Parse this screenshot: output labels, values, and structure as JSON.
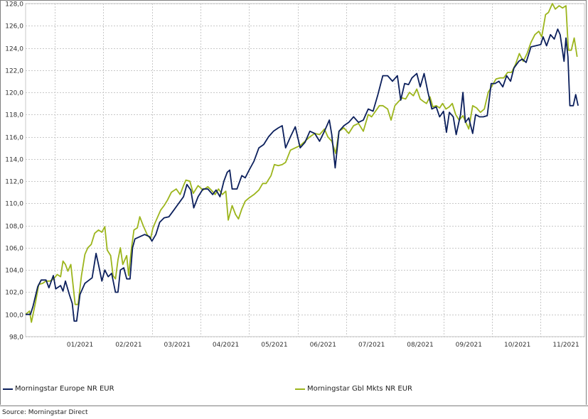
{
  "chart_data": {
    "type": "line",
    "ylim": [
      98,
      128
    ],
    "yticks": [
      "98,0",
      "100,0",
      "102,0",
      "104,0",
      "106,0",
      "108,0",
      "110,0",
      "112,0",
      "114,0",
      "116,0",
      "118,0",
      "120,0",
      "122,0",
      "124,0",
      "126,0",
      "128,0"
    ],
    "yvalues": [
      98,
      100,
      102,
      104,
      106,
      108,
      110,
      112,
      114,
      116,
      118,
      120,
      122,
      124,
      126,
      128
    ],
    "xlim": [
      0,
      11.5
    ],
    "xticks": [
      "01/2021",
      "02/2021",
      "03/2021",
      "04/2021",
      "05/2021",
      "06/2021",
      "07/2021",
      "08/2021",
      "09/2021",
      "10/2021",
      "11/2021"
    ],
    "grid": true,
    "legend_position": "bottom",
    "series": [
      {
        "name": "Morningstar Europe NR EUR",
        "color": "#0b1f5c",
        "points": [
          [
            0.0,
            100.0
          ],
          [
            0.1,
            100.0
          ],
          [
            0.15,
            100.7
          ],
          [
            0.25,
            102.5
          ],
          [
            0.32,
            103.1
          ],
          [
            0.42,
            103.1
          ],
          [
            0.48,
            102.4
          ],
          [
            0.57,
            103.5
          ],
          [
            0.62,
            102.3
          ],
          [
            0.72,
            102.6
          ],
          [
            0.77,
            102.1
          ],
          [
            0.82,
            103.0
          ],
          [
            0.9,
            101.8
          ],
          [
            0.96,
            101.0
          ],
          [
            1.0,
            99.4
          ],
          [
            1.05,
            99.4
          ],
          [
            1.12,
            101.8
          ],
          [
            1.22,
            102.8
          ],
          [
            1.28,
            103.0
          ],
          [
            1.37,
            103.3
          ],
          [
            1.45,
            105.5
          ],
          [
            1.5,
            104.5
          ],
          [
            1.57,
            103.0
          ],
          [
            1.63,
            104.0
          ],
          [
            1.7,
            103.4
          ],
          [
            1.77,
            103.7
          ],
          [
            1.85,
            102.0
          ],
          [
            1.9,
            102.0
          ],
          [
            1.95,
            104.0
          ],
          [
            2.02,
            104.2
          ],
          [
            2.08,
            103.2
          ],
          [
            2.15,
            103.2
          ],
          [
            2.2,
            106.0
          ],
          [
            2.25,
            106.8
          ],
          [
            2.35,
            107.0
          ],
          [
            2.45,
            107.2
          ],
          [
            2.55,
            107.0
          ],
          [
            2.6,
            106.6
          ],
          [
            2.68,
            107.2
          ],
          [
            2.76,
            108.3
          ],
          [
            2.85,
            108.7
          ],
          [
            2.95,
            108.8
          ],
          [
            3.05,
            109.4
          ],
          [
            3.15,
            110.0
          ],
          [
            3.25,
            110.6
          ],
          [
            3.32,
            111.7
          ],
          [
            3.4,
            111.2
          ],
          [
            3.46,
            109.6
          ],
          [
            3.55,
            110.6
          ],
          [
            3.65,
            111.3
          ],
          [
            3.75,
            111.3
          ],
          [
            3.85,
            110.8
          ],
          [
            3.92,
            111.2
          ],
          [
            4.0,
            110.6
          ],
          [
            4.08,
            112.0
          ],
          [
            4.15,
            112.8
          ],
          [
            4.2,
            113.0
          ],
          [
            4.25,
            111.3
          ],
          [
            4.35,
            111.3
          ],
          [
            4.45,
            112.5
          ],
          [
            4.52,
            112.3
          ],
          [
            4.6,
            113.0
          ],
          [
            4.7,
            113.8
          ],
          [
            4.8,
            115.0
          ],
          [
            4.9,
            115.3
          ],
          [
            5.0,
            116.0
          ],
          [
            5.1,
            116.5
          ],
          [
            5.2,
            116.8
          ],
          [
            5.28,
            117.0
          ],
          [
            5.35,
            115.0
          ],
          [
            5.45,
            116.0
          ],
          [
            5.55,
            116.9
          ],
          [
            5.65,
            115.0
          ],
          [
            5.75,
            115.5
          ],
          [
            5.85,
            116.5
          ],
          [
            5.95,
            116.3
          ],
          [
            6.05,
            115.6
          ],
          [
            6.15,
            116.5
          ],
          [
            6.25,
            117.5
          ],
          [
            6.3,
            116.2
          ],
          [
            6.37,
            113.2
          ],
          [
            6.45,
            116.5
          ],
          [
            6.55,
            117.0
          ],
          [
            6.65,
            117.3
          ],
          [
            6.75,
            117.8
          ],
          [
            6.85,
            117.3
          ],
          [
            6.95,
            117.5
          ],
          [
            7.05,
            118.5
          ],
          [
            7.15,
            118.3
          ],
          [
            7.25,
            119.8
          ],
          [
            7.35,
            121.5
          ],
          [
            7.45,
            121.5
          ],
          [
            7.55,
            121.0
          ],
          [
            7.65,
            121.5
          ],
          [
            7.72,
            119.3
          ],
          [
            7.8,
            120.8
          ],
          [
            7.88,
            120.7
          ],
          [
            7.95,
            121.3
          ],
          [
            8.05,
            121.7
          ],
          [
            8.12,
            120.5
          ],
          [
            8.2,
            121.7
          ],
          [
            8.28,
            120.0
          ],
          [
            8.36,
            118.5
          ],
          [
            8.45,
            118.7
          ],
          [
            8.52,
            117.8
          ],
          [
            8.6,
            118.3
          ],
          [
            8.66,
            116.4
          ],
          [
            8.72,
            118.2
          ],
          [
            8.8,
            117.8
          ],
          [
            8.86,
            116.2
          ],
          [
            8.95,
            118.0
          ],
          [
            9.0,
            120.0
          ],
          [
            9.05,
            117.3
          ],
          [
            9.12,
            117.7
          ],
          [
            9.2,
            116.3
          ],
          [
            9.26,
            118.0
          ],
          [
            9.34,
            117.8
          ],
          [
            9.42,
            117.8
          ],
          [
            9.5,
            117.9
          ],
          [
            9.58,
            120.8
          ],
          [
            9.66,
            120.8
          ],
          [
            9.74,
            121.0
          ],
          [
            9.82,
            120.5
          ],
          [
            9.9,
            121.5
          ],
          [
            9.98,
            121.0
          ],
          [
            10.05,
            122.2
          ],
          [
            10.15,
            122.8
          ],
          [
            10.22,
            123.0
          ],
          [
            10.3,
            122.7
          ],
          [
            10.4,
            124.1
          ],
          [
            10.5,
            124.2
          ],
          [
            10.6,
            124.3
          ],
          [
            10.65,
            125.0
          ],
          [
            10.72,
            124.2
          ],
          [
            10.8,
            125.2
          ],
          [
            10.88,
            124.8
          ],
          [
            10.95,
            125.7
          ],
          [
            11.0,
            125.2
          ],
          [
            11.08,
            122.8
          ],
          [
            11.12,
            124.9
          ],
          [
            11.16,
            123.2
          ],
          [
            11.2,
            118.8
          ],
          [
            11.27,
            118.8
          ],
          [
            11.32,
            119.8
          ],
          [
            11.37,
            118.8
          ]
        ]
      },
      {
        "name": "Morningstar Gbl Mkts NR EUR",
        "color": "#9cb51c",
        "points": [
          [
            0.0,
            100.0
          ],
          [
            0.08,
            100.3
          ],
          [
            0.12,
            99.3
          ],
          [
            0.2,
            101.0
          ],
          [
            0.27,
            102.7
          ],
          [
            0.35,
            102.8
          ],
          [
            0.42,
            103.0
          ],
          [
            0.5,
            103.0
          ],
          [
            0.58,
            103.2
          ],
          [
            0.65,
            103.6
          ],
          [
            0.72,
            103.4
          ],
          [
            0.77,
            104.8
          ],
          [
            0.82,
            104.5
          ],
          [
            0.87,
            103.9
          ],
          [
            0.93,
            104.5
          ],
          [
            0.98,
            102.5
          ],
          [
            1.02,
            100.9
          ],
          [
            1.08,
            100.9
          ],
          [
            1.15,
            103.5
          ],
          [
            1.22,
            105.4
          ],
          [
            1.28,
            106.0
          ],
          [
            1.35,
            106.3
          ],
          [
            1.42,
            107.3
          ],
          [
            1.5,
            107.6
          ],
          [
            1.57,
            107.4
          ],
          [
            1.63,
            107.9
          ],
          [
            1.68,
            105.8
          ],
          [
            1.75,
            105.3
          ],
          [
            1.8,
            103.5
          ],
          [
            1.85,
            103.2
          ],
          [
            1.9,
            104.9
          ],
          [
            1.95,
            106.0
          ],
          [
            2.0,
            104.5
          ],
          [
            2.08,
            105.3
          ],
          [
            2.12,
            103.5
          ],
          [
            2.18,
            106.0
          ],
          [
            2.23,
            107.6
          ],
          [
            2.3,
            107.8
          ],
          [
            2.35,
            108.8
          ],
          [
            2.42,
            108.0
          ],
          [
            2.5,
            107.2
          ],
          [
            2.57,
            106.8
          ],
          [
            2.62,
            107.8
          ],
          [
            2.7,
            108.6
          ],
          [
            2.78,
            109.4
          ],
          [
            2.85,
            109.8
          ],
          [
            2.92,
            110.3
          ],
          [
            3.0,
            111.0
          ],
          [
            3.1,
            111.3
          ],
          [
            3.18,
            110.8
          ],
          [
            3.25,
            111.6
          ],
          [
            3.3,
            112.1
          ],
          [
            3.38,
            112.0
          ],
          [
            3.45,
            110.9
          ],
          [
            3.55,
            111.6
          ],
          [
            3.65,
            111.2
          ],
          [
            3.75,
            111.5
          ],
          [
            3.82,
            111.2
          ],
          [
            3.9,
            110.8
          ],
          [
            3.97,
            111.3
          ],
          [
            4.05,
            110.8
          ],
          [
            4.12,
            111.1
          ],
          [
            4.17,
            108.5
          ],
          [
            4.25,
            109.8
          ],
          [
            4.32,
            109.0
          ],
          [
            4.38,
            108.6
          ],
          [
            4.45,
            109.5
          ],
          [
            4.52,
            110.2
          ],
          [
            4.6,
            110.5
          ],
          [
            4.7,
            110.8
          ],
          [
            4.8,
            111.2
          ],
          [
            4.88,
            111.8
          ],
          [
            4.95,
            111.8
          ],
          [
            5.05,
            112.5
          ],
          [
            5.12,
            113.5
          ],
          [
            5.2,
            113.4
          ],
          [
            5.28,
            113.5
          ],
          [
            5.35,
            113.7
          ],
          [
            5.45,
            114.8
          ],
          [
            5.55,
            115.0
          ],
          [
            5.65,
            115.2
          ],
          [
            5.75,
            115.6
          ],
          [
            5.85,
            116.0
          ],
          [
            5.95,
            116.3
          ],
          [
            6.05,
            116.2
          ],
          [
            6.15,
            116.7
          ],
          [
            6.22,
            116.0
          ],
          [
            6.3,
            115.6
          ],
          [
            6.38,
            114.5
          ],
          [
            6.45,
            116.5
          ],
          [
            6.55,
            116.8
          ],
          [
            6.65,
            116.3
          ],
          [
            6.75,
            117.0
          ],
          [
            6.85,
            117.2
          ],
          [
            6.95,
            116.5
          ],
          [
            7.05,
            118.0
          ],
          [
            7.12,
            117.8
          ],
          [
            7.2,
            118.3
          ],
          [
            7.28,
            118.8
          ],
          [
            7.35,
            118.8
          ],
          [
            7.45,
            118.5
          ],
          [
            7.52,
            117.5
          ],
          [
            7.6,
            118.8
          ],
          [
            7.68,
            119.2
          ],
          [
            7.75,
            119.5
          ],
          [
            7.82,
            119.4
          ],
          [
            7.9,
            120.0
          ],
          [
            7.98,
            119.7
          ],
          [
            8.05,
            120.3
          ],
          [
            8.12,
            119.4
          ],
          [
            8.18,
            119.2
          ],
          [
            8.25,
            119.0
          ],
          [
            8.32,
            119.6
          ],
          [
            8.38,
            118.7
          ],
          [
            8.45,
            118.8
          ],
          [
            8.52,
            118.6
          ],
          [
            8.58,
            119.0
          ],
          [
            8.65,
            118.5
          ],
          [
            8.72,
            118.7
          ],
          [
            8.78,
            119.0
          ],
          [
            8.85,
            118.0
          ],
          [
            8.92,
            117.5
          ],
          [
            9.0,
            117.9
          ],
          [
            9.06,
            117.3
          ],
          [
            9.12,
            116.7
          ],
          [
            9.2,
            118.8
          ],
          [
            9.28,
            118.6
          ],
          [
            9.36,
            118.2
          ],
          [
            9.44,
            118.5
          ],
          [
            9.52,
            120.0
          ],
          [
            9.6,
            120.6
          ],
          [
            9.68,
            121.2
          ],
          [
            9.76,
            121.3
          ],
          [
            9.84,
            121.3
          ],
          [
            9.92,
            121.8
          ],
          [
            10.0,
            121.8
          ],
          [
            10.08,
            122.5
          ],
          [
            10.16,
            123.5
          ],
          [
            10.24,
            122.8
          ],
          [
            10.32,
            123.5
          ],
          [
            10.4,
            124.5
          ],
          [
            10.48,
            125.2
          ],
          [
            10.56,
            125.5
          ],
          [
            10.62,
            125.0
          ],
          [
            10.7,
            127.0
          ],
          [
            10.76,
            127.2
          ],
          [
            10.84,
            128.0
          ],
          [
            10.9,
            127.5
          ],
          [
            10.98,
            127.8
          ],
          [
            11.05,
            127.6
          ],
          [
            11.12,
            127.8
          ],
          [
            11.17,
            123.8
          ],
          [
            11.23,
            123.8
          ],
          [
            11.29,
            124.9
          ],
          [
            11.35,
            123.2
          ]
        ]
      }
    ]
  },
  "legend": [
    {
      "label": "Morningstar Europe NR EUR",
      "color": "#0b1f5c"
    },
    {
      "label": "Morningstar Gbl Mkts NR EUR",
      "color": "#9cb51c"
    }
  ],
  "footer": {
    "source": "Source: Morningstar Direct"
  }
}
